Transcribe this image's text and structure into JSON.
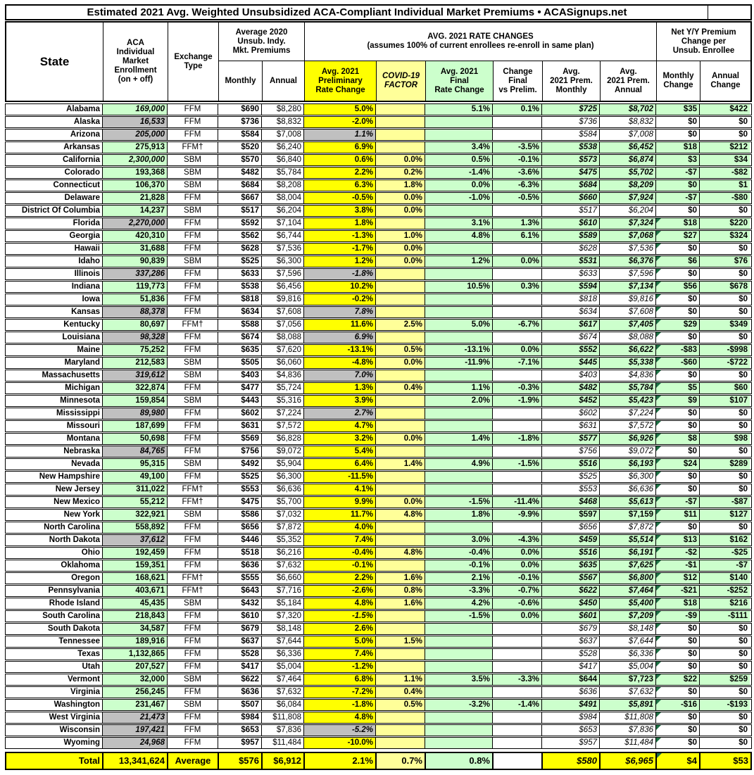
{
  "title": "Estimated 2021 Avg. Weighted Unsubsidized ACA-Compliant Individual Market Premiums • ACASignups.net",
  "colors": {
    "cell_yellow": "#FFFF00",
    "cell_pale_yellow": "#FFFF99",
    "cell_green": "#CCFFCC",
    "cell_gray": "#C0C0C0",
    "comment_marker_green": "#1E7145",
    "border_black": "#000000"
  },
  "header": {
    "state": "State",
    "enrollment": "ACA\nIndividual\nMarket\nEnrollment\n(on + off)",
    "exchange": "Exchange\nType",
    "avg_2020": "Average 2020\nUnsub. Indy.\nMkt. Premiums",
    "monthly": "Monthly",
    "annual": "Annual",
    "rate_changes_title": "AVG. 2021 RATE CHANGES",
    "rate_changes_sub": "(assumes 100% of current enrollees re-enroll in same plan)",
    "prelim": "Avg. 2021\nPreliminary\nRate Change",
    "covid": "COVID-19\nFACTOR",
    "final": "Avg. 2021\nFinal\nRate Change",
    "change_vs_prelim": "Change\nFinal\nvs Prelim.",
    "prem_monthly": "Avg.\n2021 Prem.\nMonthly",
    "prem_annual": "Avg.\n2021 Prem.\nAnnual",
    "net_change": "Net Y/Y Premium\nChange per\nUnsub. Enrollee",
    "monthly_change": "Monthly\nChange",
    "annual_change": "Annual\nChange"
  },
  "row_fields": [
    "state",
    "enrollment",
    "enrollment_bg",
    "enrollment_italic",
    "exchange_type",
    "monthly_2020",
    "annual_2020",
    "prelim_change",
    "prelim_bg",
    "prelim_italic",
    "covid_factor",
    "final_change",
    "change_vs_prelim",
    "prem_2021_monthly",
    "prem_2021_annual",
    "prem_style",
    "monthly_change",
    "annual_change",
    "has_marker"
  ],
  "rows": [
    [
      "Alabama",
      "169,000",
      "green",
      true,
      "FFM",
      "$690",
      "$8,280",
      "5.0%",
      "yellow",
      false,
      "",
      "5.1%",
      "0.1%",
      "$725",
      "$8,702",
      "green-bold-italic",
      "$35",
      "$422",
      false
    ],
    [
      "Alaska",
      "16,533",
      "gray",
      true,
      "FFM",
      "$736",
      "$8,832",
      "-2.0%",
      "yellow",
      false,
      "",
      "",
      "",
      "$736",
      "$8,832",
      "white-italic",
      "$0",
      "$0",
      false
    ],
    [
      "Arizona",
      "205,000",
      "gray",
      true,
      "FFM",
      "$584",
      "$7,008",
      "1.1%",
      "gray",
      true,
      "",
      "",
      "",
      "$584",
      "$7,008",
      "white-italic",
      "$0",
      "$0",
      false
    ],
    [
      "Arkansas",
      "275,913",
      "green",
      false,
      "FFM†",
      "$520",
      "$6,240",
      "6.9%",
      "yellow",
      false,
      "",
      "3.4%",
      "-3.5%",
      "$538",
      "$6,452",
      "green-bold-italic",
      "$18",
      "$212",
      false
    ],
    [
      "California",
      "2,300,000",
      "green",
      true,
      "SBM",
      "$570",
      "$6,840",
      "0.6%",
      "yellow",
      false,
      "0.0%",
      "0.5%",
      "-0.1%",
      "$573",
      "$6,874",
      "green-bold-italic",
      "$3",
      "$34",
      false
    ],
    [
      "Colorado",
      "193,368",
      "green",
      false,
      "SBM",
      "$482",
      "$5,784",
      "2.2%",
      "yellow",
      false,
      "0.2%",
      "-1.4%",
      "-3.6%",
      "$475",
      "$5,702",
      "green-bold-italic",
      "-$7",
      "-$82",
      false
    ],
    [
      "Connecticut",
      "106,370",
      "green",
      false,
      "SBM",
      "$684",
      "$8,208",
      "6.3%",
      "yellow",
      false,
      "1.8%",
      "0.0%",
      "-6.3%",
      "$684",
      "$8,209",
      "green-bold-italic",
      "$0",
      "$1",
      false
    ],
    [
      "Delaware",
      "21,828",
      "green",
      false,
      "FFM",
      "$667",
      "$8,004",
      "-0.5%",
      "yellow",
      false,
      "0.0%",
      "-1.0%",
      "-0.5%",
      "$660",
      "$7,924",
      "green-bold-italic",
      "-$7",
      "-$80",
      false
    ],
    [
      "District Of Columbia",
      "14,237",
      "green",
      false,
      "SBM",
      "$517",
      "$6,204",
      "3.8%",
      "yellow",
      false,
      "0.0%",
      "",
      "",
      "$517",
      "$6,204",
      "white-italic",
      "$0",
      "$0",
      false
    ],
    [
      "Florida",
      "2,270,000",
      "gray",
      true,
      "FFM",
      "$592",
      "$7,104",
      "1.8%",
      "yellow",
      false,
      "",
      "3.1%",
      "1.3%",
      "$610",
      "$7,324",
      "green-bold-italic",
      "$18",
      "$220",
      true
    ],
    [
      "Georgia",
      "420,310",
      "green",
      false,
      "FFM",
      "$562",
      "$6,744",
      "-1.3%",
      "yellow",
      false,
      "1.0%",
      "4.8%",
      "6.1%",
      "$589",
      "$7,068",
      "green-bold-italic",
      "$27",
      "$324",
      true
    ],
    [
      "Hawaii",
      "31,688",
      "green",
      false,
      "FFM",
      "$628",
      "$7,536",
      "-1.7%",
      "yellow",
      false,
      "0.0%",
      "",
      "",
      "$628",
      "$7,536",
      "white-italic",
      "$0",
      "$0",
      true
    ],
    [
      "Idaho",
      "90,839",
      "green",
      false,
      "SBM",
      "$525",
      "$6,300",
      "1.2%",
      "yellow",
      false,
      "0.0%",
      "1.2%",
      "0.0%",
      "$531",
      "$6,376",
      "green-bold-italic",
      "$6",
      "$76",
      true
    ],
    [
      "Illinois",
      "337,286",
      "gray",
      true,
      "FFM",
      "$633",
      "$7,596",
      "-1.8%",
      "gray",
      true,
      "",
      "",
      "",
      "$633",
      "$7,596",
      "white-italic",
      "$0",
      "$0",
      true
    ],
    [
      "Indiana",
      "119,773",
      "green",
      false,
      "FFM",
      "$538",
      "$6,456",
      "10.2%",
      "yellow",
      false,
      "",
      "10.5%",
      "0.3%",
      "$594",
      "$7,134",
      "green-bold-italic",
      "$56",
      "$678",
      true
    ],
    [
      "Iowa",
      "51,836",
      "green",
      false,
      "FFM",
      "$818",
      "$9,816",
      "-0.2%",
      "yellow",
      false,
      "",
      "",
      "",
      "$818",
      "$9,816",
      "white-italic",
      "$0",
      "$0",
      true
    ],
    [
      "Kansas",
      "88,378",
      "gray",
      true,
      "FFM",
      "$634",
      "$7,608",
      "7.8%",
      "gray",
      true,
      "",
      "",
      "",
      "$634",
      "$7,608",
      "white-italic",
      "$0",
      "$0",
      true
    ],
    [
      "Kentucky",
      "80,697",
      "green",
      false,
      "FFM†",
      "$588",
      "$7,056",
      "11.6%",
      "yellow",
      false,
      "2.5%",
      "5.0%",
      "-6.7%",
      "$617",
      "$7,405",
      "green-bold-italic",
      "$29",
      "$349",
      true
    ],
    [
      "Louisiana",
      "98,328",
      "gray",
      true,
      "FFM",
      "$674",
      "$8,088",
      "6.9%",
      "gray",
      true,
      "",
      "",
      "",
      "$674",
      "$8,088",
      "white-italic",
      "$0",
      "$0",
      true
    ],
    [
      "Maine",
      "75,252",
      "green",
      false,
      "FFM",
      "$635",
      "$7,620",
      "-13.1%",
      "yellow",
      false,
      "0.5%",
      "-13.1%",
      "0.0%",
      "$552",
      "$6,622",
      "green-bold-italic",
      "-$83",
      "-$998",
      true
    ],
    [
      "Maryland",
      "212,583",
      "green",
      false,
      "SBM",
      "$505",
      "$6,060",
      "-4.8%",
      "yellow",
      false,
      "0.0%",
      "-11.9%",
      "-7.1%",
      "$445",
      "$5,338",
      "green-bold-italic",
      "-$60",
      "-$722",
      true
    ],
    [
      "Massachusetts",
      "319,612",
      "gray",
      true,
      "SBM",
      "$403",
      "$4,836",
      "7.0%",
      "gray",
      true,
      "",
      "",
      "",
      "$403",
      "$4,836",
      "white-italic",
      "$0",
      "$0",
      true
    ],
    [
      "Michigan",
      "322,874",
      "green",
      false,
      "FFM",
      "$477",
      "$5,724",
      "1.3%",
      "yellow",
      false,
      "0.4%",
      "1.1%",
      "-0.3%",
      "$482",
      "$5,784",
      "green-bold-italic",
      "$5",
      "$60",
      true
    ],
    [
      "Minnesota",
      "159,854",
      "green",
      false,
      "SBM",
      "$443",
      "$5,316",
      "3.9%",
      "yellow",
      false,
      "",
      "2.0%",
      "-1.9%",
      "$452",
      "$5,423",
      "green-bold-italic",
      "$9",
      "$107",
      true
    ],
    [
      "Mississippi",
      "89,980",
      "gray",
      true,
      "FFM",
      "$602",
      "$7,224",
      "2.7%",
      "gray",
      true,
      "",
      "",
      "",
      "$602",
      "$7,224",
      "white-italic",
      "$0",
      "$0",
      true
    ],
    [
      "Missouri",
      "187,699",
      "green",
      false,
      "FFM",
      "$631",
      "$7,572",
      "4.7%",
      "yellow",
      false,
      "",
      "",
      "",
      "$631",
      "$7,572",
      "white-italic",
      "$0",
      "$0",
      true
    ],
    [
      "Montana",
      "50,698",
      "green",
      false,
      "FFM",
      "$569",
      "$6,828",
      "3.2%",
      "yellow",
      false,
      "0.0%",
      "1.4%",
      "-1.8%",
      "$577",
      "$6,926",
      "green-bold-italic",
      "$8",
      "$98",
      true
    ],
    [
      "Nebraska",
      "84,765",
      "gray",
      true,
      "FFM",
      "$756",
      "$9,072",
      "5.4%",
      "yellow",
      false,
      "",
      "",
      "",
      "$756",
      "$9,072",
      "white-italic",
      "$0",
      "$0",
      true
    ],
    [
      "Nevada",
      "95,315",
      "green",
      false,
      "SBM",
      "$492",
      "$5,904",
      "6.4%",
      "yellow",
      false,
      "1.4%",
      "4.9%",
      "-1.5%",
      "$516",
      "$6,193",
      "green-bold-italic",
      "$24",
      "$289",
      true
    ],
    [
      "New Hampshire",
      "49,100",
      "green",
      false,
      "FFM",
      "$525",
      "$6,300",
      "-11.5%",
      "yellow",
      false,
      "",
      "",
      "",
      "$525",
      "$6,300",
      "white-italic",
      "$0",
      "$0",
      true
    ],
    [
      "New Jersey",
      "311,022",
      "green",
      false,
      "FFM†",
      "$553",
      "$6,636",
      "4.1%",
      "yellow",
      false,
      "",
      "",
      "",
      "$553",
      "$6,636",
      "white-italic",
      "$0",
      "$0",
      true
    ],
    [
      "New Mexico",
      "55,212",
      "green",
      false,
      "FFM†",
      "$475",
      "$5,700",
      "9.9%",
      "yellow",
      false,
      "0.0%",
      "-1.5%",
      "-11.4%",
      "$468",
      "$5,613",
      "green-bold-italic",
      "-$7",
      "-$87",
      true
    ],
    [
      "New York",
      "322,921",
      "green",
      false,
      "SBM",
      "$586",
      "$7,032",
      "11.7%",
      "yellow",
      false,
      "4.8%",
      "1.8%",
      "-9.9%",
      "$597",
      "$7,159",
      "green-bold",
      "$11",
      "$127",
      true
    ],
    [
      "North Carolina",
      "558,892",
      "green",
      false,
      "FFM",
      "$656",
      "$7,872",
      "4.0%",
      "yellow",
      false,
      "",
      "",
      "",
      "$656",
      "$7,872",
      "white-italic",
      "$0",
      "$0",
      true
    ],
    [
      "North Dakota",
      "37,612",
      "gray",
      true,
      "FFM",
      "$446",
      "$5,352",
      "7.4%",
      "yellow",
      false,
      "",
      "3.0%",
      "-4.3%",
      "$459",
      "$5,514",
      "green-bold-italic",
      "$13",
      "$162",
      true
    ],
    [
      "Ohio",
      "192,459",
      "green",
      false,
      "FFM",
      "$518",
      "$6,216",
      "-0.4%",
      "yellow",
      false,
      "4.8%",
      "-0.4%",
      "0.0%",
      "$516",
      "$6,191",
      "green-bold-italic",
      "-$2",
      "-$25",
      true
    ],
    [
      "Oklahoma",
      "159,351",
      "green",
      false,
      "FFM",
      "$636",
      "$7,632",
      "-0.1%",
      "yellow",
      false,
      "",
      "-0.1%",
      "0.0%",
      "$635",
      "$7,625",
      "green-bold-italic",
      "-$1",
      "-$7",
      true
    ],
    [
      "Oregon",
      "168,621",
      "green",
      false,
      "FFM†",
      "$555",
      "$6,660",
      "2.2%",
      "yellow",
      false,
      "1.6%",
      "2.1%",
      "-0.1%",
      "$567",
      "$6,800",
      "green-bold-italic",
      "$12",
      "$140",
      true
    ],
    [
      "Pennsylvania",
      "403,671",
      "green",
      false,
      "FFM†",
      "$643",
      "$7,716",
      "-2.6%",
      "yellow",
      false,
      "0.8%",
      "-3.3%",
      "-0.7%",
      "$622",
      "$7,464",
      "green-bold-italic",
      "-$21",
      "-$252",
      true
    ],
    [
      "Rhode Island",
      "45,435",
      "green",
      false,
      "SBM",
      "$432",
      "$5,184",
      "4.8%",
      "yellow",
      false,
      "1.6%",
      "4.2%",
      "-0.6%",
      "$450",
      "$5,400",
      "green-bold-italic",
      "$18",
      "$216",
      true
    ],
    [
      "South Carolina",
      "218,843",
      "green",
      false,
      "FFM",
      "$610",
      "$7,320",
      "-1.5%",
      "yellow",
      true,
      "",
      "-1.5%",
      "0.0%",
      "$601",
      "$7,209",
      "green-bold-italic",
      "-$9",
      "-$111",
      true
    ],
    [
      "South Dakota",
      "34,587",
      "green",
      false,
      "FFM",
      "$679",
      "$8,148",
      "2.6%",
      "yellow",
      false,
      "",
      "",
      "",
      "$679",
      "$8,148",
      "white-italic",
      "$0",
      "$0",
      true
    ],
    [
      "Tennessee",
      "189,916",
      "green",
      false,
      "FFM",
      "$637",
      "$7,644",
      "5.0%",
      "yellow",
      false,
      "1.5%",
      "",
      "",
      "$637",
      "$7,644",
      "white-italic",
      "$0",
      "$0",
      true
    ],
    [
      "Texas",
      "1,132,865",
      "green",
      false,
      "FFM",
      "$528",
      "$6,336",
      "7.4%",
      "yellow",
      false,
      "",
      "",
      "",
      "$528",
      "$6,336",
      "white-italic",
      "$0",
      "$0",
      true
    ],
    [
      "Utah",
      "207,527",
      "green",
      false,
      "FFM",
      "$417",
      "$5,004",
      "-1.2%",
      "yellow",
      false,
      "",
      "",
      "",
      "$417",
      "$5,004",
      "white-italic",
      "$0",
      "$0",
      true
    ],
    [
      "Vermont",
      "32,000",
      "green",
      false,
      "SBM",
      "$622",
      "$7,464",
      "6.8%",
      "yellow",
      false,
      "1.1%",
      "3.5%",
      "-3.3%",
      "$644",
      "$7,723",
      "green-bold",
      "$22",
      "$259",
      true
    ],
    [
      "Virginia",
      "256,245",
      "green",
      false,
      "FFM",
      "$636",
      "$7,632",
      "-7.2%",
      "yellow",
      false,
      "0.4%",
      "",
      "",
      "$636",
      "$7,632",
      "white-italic",
      "$0",
      "$0",
      true
    ],
    [
      "Washington",
      "231,467",
      "green",
      false,
      "SBM",
      "$507",
      "$6,084",
      "-1.8%",
      "yellow",
      false,
      "0.5%",
      "-3.2%",
      "-1.4%",
      "$491",
      "$5,891",
      "green-bold-italic",
      "-$16",
      "-$193",
      true
    ],
    [
      "West Virginia",
      "21,473",
      "gray",
      true,
      "FFM",
      "$984",
      "$11,808",
      "4.8%",
      "yellow",
      false,
      "",
      "",
      "",
      "$984",
      "$11,808",
      "white-italic",
      "$0",
      "$0",
      true
    ],
    [
      "Wisconsin",
      "197,421",
      "gray",
      true,
      "FFM",
      "$653",
      "$7,836",
      "-5.2%",
      "gray",
      true,
      "",
      "",
      "",
      "$653",
      "$7,836",
      "white-italic",
      "$0",
      "$0",
      true
    ],
    [
      "Wyoming",
      "24,968",
      "gray",
      true,
      "FFM",
      "$957",
      "$11,484",
      "-10.0%",
      "yellow",
      false,
      "",
      "",
      "",
      "$957",
      "$11,484",
      "white-italic",
      "$0",
      "$0",
      true
    ]
  ],
  "total": {
    "label": "Total",
    "enrollment": "13,341,624",
    "exchange": "Average",
    "monthly_2020": "$576",
    "annual_2020": "$6,912",
    "prelim_change": "2.1%",
    "covid_factor": "0.7%",
    "final_change": "0.8%",
    "change_vs_prelim": "",
    "prem_2021_monthly": "$580",
    "prem_2021_annual": "$6,965",
    "monthly_change": "$4",
    "annual_change": "$53",
    "has_marker": true
  }
}
